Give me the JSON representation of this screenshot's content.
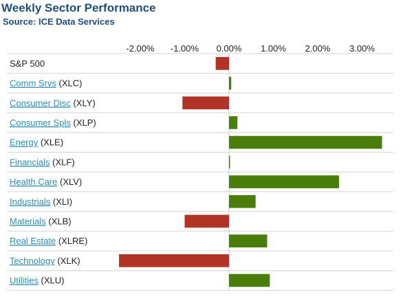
{
  "title": "Weekly Sector Performance",
  "source": "Source: ICE Data Services",
  "colors": {
    "positive": "#4a7e0a",
    "negative": "#b03326",
    "link": "#2e8fb2",
    "title": "#1f4e79"
  },
  "chart_data": {
    "type": "bar",
    "orientation": "horizontal",
    "tick_labels": [
      "-2.00%",
      "-1.00%",
      "0.00%",
      "1.00%",
      "2.00%",
      "3.00%"
    ],
    "xlim": [
      -2.5,
      3.5
    ],
    "categories": [
      {
        "name": "S&P 500",
        "ticker": "",
        "link": false,
        "value": -0.3
      },
      {
        "name": "Comm Srvs",
        "ticker": "(XLC)",
        "link": true,
        "value": 0.05
      },
      {
        "name": "Consumer Disc",
        "ticker": "(XLY)",
        "link": true,
        "value": -1.05
      },
      {
        "name": "Consumer Spls",
        "ticker": "(XLP)",
        "link": true,
        "value": 0.19
      },
      {
        "name": "Energy",
        "ticker": "(XLE)",
        "link": true,
        "value": 3.45
      },
      {
        "name": "Financials",
        "ticker": "(XLF)",
        "link": true,
        "value": 0.02
      },
      {
        "name": "Health Care",
        "ticker": "(XLV)",
        "link": true,
        "value": 2.48
      },
      {
        "name": "Industrials",
        "ticker": "(XLI)",
        "link": true,
        "value": 0.6
      },
      {
        "name": "Materials",
        "ticker": "(XLB)",
        "link": true,
        "value": -1.0
      },
      {
        "name": "Real Estate",
        "ticker": "(XLRE)",
        "link": true,
        "value": 0.86
      },
      {
        "name": "Technology",
        "ticker": "(XLK)",
        "link": true,
        "value": -2.48
      },
      {
        "name": "Utilities",
        "ticker": "(XLU)",
        "link": true,
        "value": 0.92
      }
    ]
  }
}
